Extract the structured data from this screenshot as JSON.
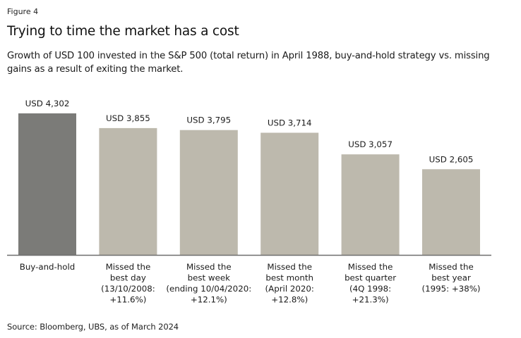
{
  "figure_label": "Figure 4",
  "title": "Trying to time the market has a cost",
  "subtitle": "Growth of USD 100 invested in the S&P 500 (total return) in April 1988, buy-and-hold strategy vs. missing gains as a result of exiting the market.",
  "source": "Source: Bloomberg, UBS, as of March 2024",
  "colors": {
    "highlight_bar": "#7b7b78",
    "other_bar": "#bdb9ad",
    "axis": "#6e6e6e"
  },
  "chart_data": {
    "type": "bar",
    "title": "Trying to time the market has a cost",
    "xlabel": "",
    "ylabel": "",
    "ylim": [
      0,
      4302
    ],
    "grid": false,
    "categories": [
      [
        "Buy-and-hold"
      ],
      [
        "Missed the",
        "best day",
        "(13/10/2008:",
        "+11.6%)"
      ],
      [
        "Missed the",
        "best week",
        "(ending 10/04/2020:",
        "+12.1%)"
      ],
      [
        "Missed the",
        "best month",
        "(April 2020:",
        "+12.8%)"
      ],
      [
        "Missed the",
        "best quarter",
        "(4Q 1998:",
        "+21.3%)"
      ],
      [
        "Missed the",
        "best year",
        "(1995: +38%)"
      ]
    ],
    "values": [
      4302,
      3855,
      3795,
      3714,
      3057,
      2605
    ],
    "data_labels": [
      "USD 4,302",
      "USD 3,855",
      "USD 3,795",
      "USD 3,714",
      "USD 3,057",
      "USD 2,605"
    ],
    "highlight_index": 0
  }
}
